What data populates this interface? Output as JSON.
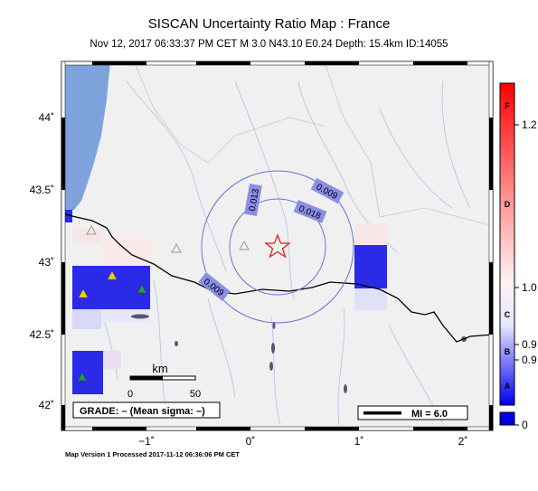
{
  "title": "SISCAN Uncertainty Ratio Map : France",
  "subtitle": "Nov 12, 2017 06:33:37 PM CET   M 3.0   N43.10 E0.24   Depth: 15.4km   ID:14055",
  "footer": "Map Version 1 Processed 2017-11-12 06:36:06 PM CET",
  "map": {
    "lat_labels": [
      "44˚",
      "43.5˚",
      "43˚",
      "42.5˚",
      "42˚"
    ],
    "lon_labels": [
      "−1˚",
      "0˚",
      "1˚",
      "2˚"
    ],
    "contour_labels": [
      "0.013",
      "0.009",
      "0.018",
      "0.009"
    ],
    "scale_bar": {
      "unit": "km",
      "min_label": "0",
      "max_label": "50"
    },
    "grade_box": "GRADE: – (Mean sigma: –)",
    "mi_legend": "MI = 6.0",
    "epicenter": {
      "lat": 43.1,
      "lon": 0.24
    },
    "colorbar": {
      "letters": [
        "F",
        "D",
        "C",
        "B",
        "A"
      ],
      "values": [
        "1.2",
        "1.0",
        "0.9",
        "0.9",
        "0"
      ]
    }
  },
  "colors": {
    "land": "#f0f0f0",
    "sea": "#7ea3dc",
    "rivers": "#a9c4e8",
    "contours": "#6a6fd9",
    "epicenter": "#e02020"
  }
}
